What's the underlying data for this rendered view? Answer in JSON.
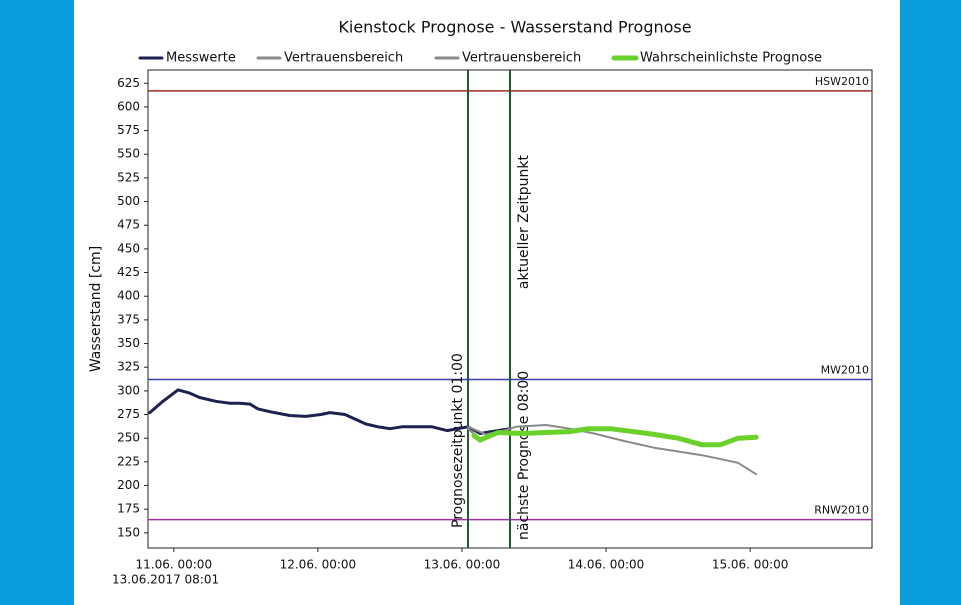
{
  "chart_data": {
    "type": "line",
    "title": "Kienstock Prognose - Wasserstand Prognose",
    "ylabel": "Wasserstand [cm]",
    "footnote": "13.06.2017 08:01",
    "xlim": [
      -4.3,
      116.3
    ],
    "xticks": [
      {
        "value": 0,
        "label": "11.06. 00:00"
      },
      {
        "value": 24,
        "label": "12.06. 00:00"
      },
      {
        "value": 48,
        "label": "13.06. 00:00"
      },
      {
        "value": 72,
        "label": "14.06. 00:00"
      },
      {
        "value": 96,
        "label": "15.06. 00:00"
      }
    ],
    "ylim": [
      134,
      639
    ],
    "yticks": [
      150,
      175,
      200,
      225,
      250,
      275,
      300,
      325,
      350,
      375,
      400,
      425,
      450,
      475,
      500,
      525,
      550,
      575,
      600,
      625
    ],
    "grid": false,
    "hlines": [
      {
        "label": "HSW2010",
        "value": 617,
        "color": "#a02828"
      },
      {
        "label": "MW2010",
        "value": 312,
        "color": "#3840b0"
      },
      {
        "label": "RNW2010",
        "value": 164,
        "color": "#a030a0"
      }
    ],
    "vlines": [
      {
        "labels": [
          "Prognosezeitpunkt 01:00"
        ],
        "value": 49,
        "color": "#1f5a2a"
      },
      {
        "labels": [
          "aktueller Zeitpunkt",
          "nächste Prognose 08:00"
        ],
        "value": 56,
        "color": "#1f5a2a"
      }
    ],
    "series": [
      {
        "name": "Messwerte",
        "color": "#1c2150",
        "width": 3,
        "x": [
          -4,
          -2,
          0.7,
          2.5,
          4.3,
          7,
          9.3,
          11,
          12.7,
          14,
          16,
          19.3,
          22,
          24.5,
          26,
          28.5,
          32,
          34,
          36,
          38,
          43,
          45.5,
          49,
          51,
          54,
          56
        ],
        "values": [
          277,
          288,
          301,
          298,
          293,
          289,
          287,
          287,
          286,
          281,
          278,
          274,
          273,
          275,
          277,
          275,
          265,
          262,
          260,
          262,
          262,
          258,
          262,
          255,
          258,
          260
        ]
      },
      {
        "name": "Vertrauensbereich",
        "color": "#8a8a8a",
        "width": 2,
        "x": [
          49,
          52,
          55,
          57,
          62,
          66,
          70,
          75,
          80,
          88,
          94,
          97
        ],
        "values": [
          262,
          254,
          258,
          262,
          264,
          260,
          255,
          247,
          240,
          232,
          224,
          212
        ]
      },
      {
        "name": "Vertrauensbereich",
        "color": "#8a8a8a",
        "width": 2,
        "x": [
          49,
          51,
          54,
          58,
          62,
          69,
          73,
          79,
          84,
          88,
          91,
          94,
          97
        ],
        "values": [
          260,
          249,
          255,
          254,
          255,
          259,
          259,
          254,
          249,
          242,
          242,
          249,
          250
        ]
      },
      {
        "name": "Wahrscheinlichste Prognose",
        "color": "#6ad12a",
        "width": 5,
        "x": [
          50,
          51,
          54,
          58,
          62,
          66,
          69,
          72.7,
          79,
          84,
          88,
          91,
          94,
          97
        ],
        "values": [
          253,
          248,
          256,
          255,
          256,
          257,
          260,
          260,
          255,
          250,
          243,
          243,
          250,
          251
        ]
      }
    ]
  }
}
